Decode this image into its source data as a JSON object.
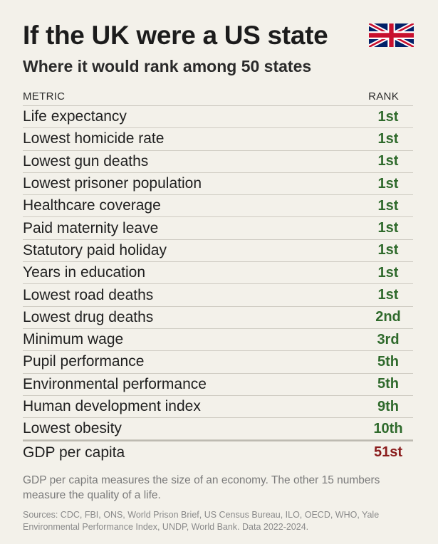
{
  "header": {
    "title": "If the UK were a US state",
    "subtitle": "Where it would rank among 50 states",
    "flag_icon": "uk-flag-icon"
  },
  "table": {
    "columns": [
      "METRIC",
      "RANK"
    ],
    "rows": [
      {
        "metric": "Life expectancy",
        "rank": "1st"
      },
      {
        "metric": "Lowest homicide rate",
        "rank": "1st"
      },
      {
        "metric": "Lowest gun deaths",
        "rank": "1st"
      },
      {
        "metric": "Lowest prisoner population",
        "rank": "1st"
      },
      {
        "metric": "Healthcare coverage",
        "rank": "1st"
      },
      {
        "metric": "Paid maternity leave",
        "rank": "1st"
      },
      {
        "metric": "Statutory paid holiday",
        "rank": "1st"
      },
      {
        "metric": "Years in education",
        "rank": "1st"
      },
      {
        "metric": "Lowest road deaths",
        "rank": "1st"
      },
      {
        "metric": "Lowest drug deaths",
        "rank": "2nd"
      },
      {
        "metric": "Minimum wage",
        "rank": "3rd"
      },
      {
        "metric": "Pupil performance",
        "rank": "5th"
      },
      {
        "metric": "Environmental performance",
        "rank": "5th"
      },
      {
        "metric": "Human development index",
        "rank": "9th"
      },
      {
        "metric": "Lowest obesity",
        "rank": "10th"
      },
      {
        "metric": "GDP per capita",
        "rank": "51st"
      }
    ]
  },
  "footer": {
    "note": "GDP per capita measures the size of an economy. The other 15 numbers measure the quality of a life.",
    "sources": "Sources: CDC, FBI, ONS, World Prison Brief, US Census Bureau, ILO, OECD, WHO, Yale Environmental Performance Index, UNDP, World Bank. Data 2022-2024."
  },
  "colors": {
    "background": "#f3f1ea",
    "rank_good": "#2f6a2c",
    "rank_bad": "#8a1c1c"
  }
}
